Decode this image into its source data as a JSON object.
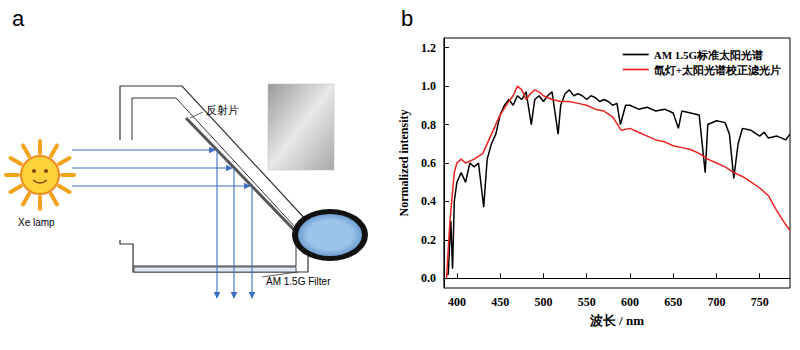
{
  "diagram": {
    "title": "a",
    "labels": {
      "reflector": "反射片",
      "lamp": "Xe lamp",
      "filter": "AM 1.5G Filter"
    }
  },
  "chart_data": {
    "type": "line",
    "title": "b",
    "x_label": "波长 / nm",
    "y_label": "Normalized intensity",
    "xlim": [
      385,
      785
    ],
    "xticks": [
      400,
      450,
      500,
      550,
      600,
      650,
      700,
      750
    ],
    "ylim": [
      -0.05,
      1.25
    ],
    "yticks": [
      {
        "value": 0,
        "label": "0.0"
      },
      0.2,
      0.4,
      0.6,
      0.8,
      {
        "value": 1,
        "label": "1.0"
      },
      1.2
    ],
    "grid": false,
    "legend": "top-right",
    "series": [
      {
        "name": "AM 1.5G标准太阳光谱",
        "color": "#000000",
        "x": [
          388,
          390,
          393,
          395,
          397,
          400,
          405,
          410,
          415,
          420,
          425,
          431,
          435,
          440,
          445,
          450,
          455,
          460,
          465,
          470,
          475,
          480,
          486,
          490,
          495,
          500,
          505,
          510,
          517,
          520,
          525,
          530,
          535,
          540,
          545,
          550,
          555,
          560,
          565,
          570,
          575,
          580,
          585,
          589,
          595,
          600,
          610,
          620,
          630,
          640,
          650,
          656,
          660,
          670,
          680,
          687,
          690,
          700,
          710,
          715,
          720,
          725,
          730,
          740,
          750,
          755,
          760,
          770,
          780,
          785
        ],
        "values": [
          0.02,
          0.02,
          0.3,
          0.05,
          0.4,
          0.5,
          0.55,
          0.5,
          0.6,
          0.58,
          0.6,
          0.37,
          0.62,
          0.7,
          0.75,
          0.85,
          0.9,
          0.93,
          0.9,
          0.95,
          0.93,
          0.97,
          0.8,
          0.93,
          0.95,
          0.92,
          0.95,
          0.97,
          0.75,
          0.9,
          0.96,
          0.98,
          0.95,
          0.96,
          0.95,
          0.93,
          0.95,
          0.94,
          0.92,
          0.93,
          0.92,
          0.9,
          0.91,
          0.8,
          0.9,
          0.9,
          0.88,
          0.89,
          0.87,
          0.88,
          0.86,
          0.78,
          0.87,
          0.86,
          0.85,
          0.55,
          0.8,
          0.82,
          0.81,
          0.75,
          0.52,
          0.7,
          0.78,
          0.77,
          0.74,
          0.76,
          0.73,
          0.74,
          0.72,
          0.75
        ]
      },
      {
        "name": "氙灯+太阳光谱校正滤光片",
        "color": "#e8231f",
        "x": [
          388,
          392,
          397,
          400,
          405,
          410,
          420,
          430,
          440,
          450,
          460,
          465,
          470,
          475,
          480,
          485,
          490,
          495,
          500,
          510,
          520,
          530,
          540,
          550,
          560,
          570,
          580,
          590,
          600,
          610,
          620,
          630,
          640,
          650,
          660,
          670,
          680,
          690,
          700,
          710,
          720,
          730,
          740,
          750,
          760,
          770,
          780,
          785
        ],
        "values": [
          0.0,
          0.3,
          0.55,
          0.6,
          0.62,
          0.6,
          0.62,
          0.65,
          0.75,
          0.85,
          0.92,
          0.95,
          1.0,
          0.98,
          0.93,
          0.96,
          0.98,
          0.97,
          0.95,
          0.93,
          0.92,
          0.92,
          0.91,
          0.9,
          0.88,
          0.87,
          0.84,
          0.77,
          0.78,
          0.76,
          0.74,
          0.72,
          0.71,
          0.69,
          0.68,
          0.67,
          0.65,
          0.62,
          0.6,
          0.58,
          0.55,
          0.53,
          0.5,
          0.47,
          0.43,
          0.35,
          0.28,
          0.25
        ]
      }
    ]
  }
}
